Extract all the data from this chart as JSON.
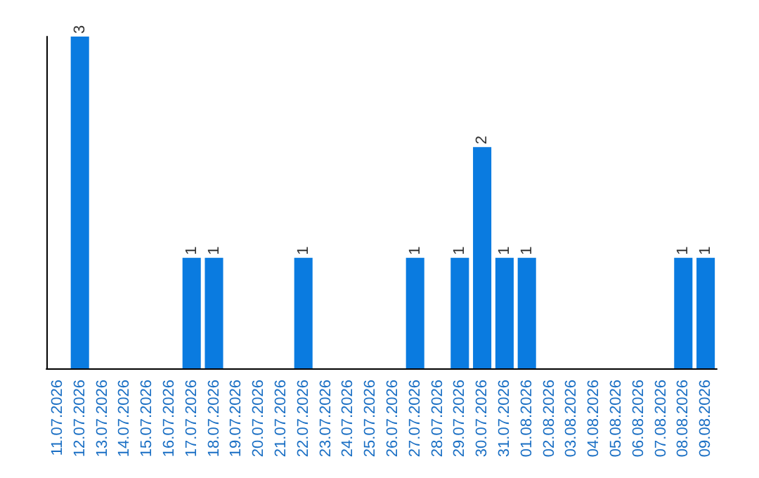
{
  "chart_data": {
    "type": "bar",
    "categories": [
      "11.07.2026",
      "12.07.2026",
      "13.07.2026",
      "14.07.2026",
      "15.07.2026",
      "16.07.2026",
      "17.07.2026",
      "18.07.2026",
      "19.07.2026",
      "20.07.2026",
      "21.07.2026",
      "22.07.2026",
      "23.07.2026",
      "24.07.2026",
      "25.07.2026",
      "26.07.2026",
      "27.07.2026",
      "28.07.2026",
      "29.07.2026",
      "30.07.2026",
      "31.07.2026",
      "01.08.2026",
      "02.08.2026",
      "03.08.2026",
      "04.08.2026",
      "05.08.2026",
      "06.08.2026",
      "07.08.2026",
      "08.08.2026",
      "09.08.2026"
    ],
    "values": [
      0,
      3,
      0,
      0,
      0,
      0,
      1,
      1,
      0,
      0,
      0,
      1,
      0,
      0,
      0,
      0,
      1,
      0,
      1,
      2,
      1,
      1,
      0,
      0,
      0,
      0,
      0,
      0,
      1,
      1
    ],
    "value_labels": [
      null,
      "3",
      null,
      null,
      null,
      null,
      "1",
      "1",
      null,
      null,
      null,
      "1",
      null,
      null,
      null,
      null,
      "1",
      null,
      "1",
      "2",
      "1",
      "1",
      null,
      null,
      null,
      null,
      null,
      null,
      "1",
      "1"
    ],
    "color": "#0a7be0",
    "ylim": [
      0,
      3
    ],
    "tick_labels": "x"
  }
}
